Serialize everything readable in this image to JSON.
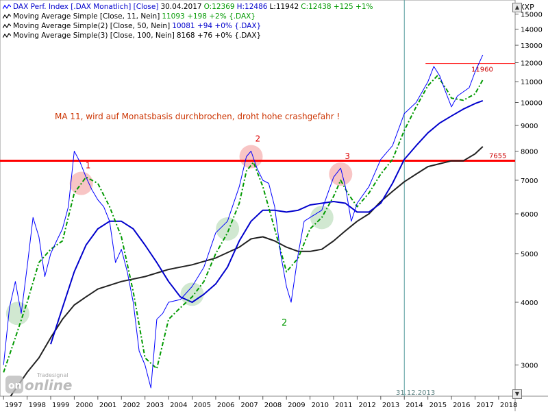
{
  "legend": {
    "row1": {
      "name": "DAX Perf. Index [.DAX  Monatlich] [Close]",
      "date": "30.04.2017",
      "open": "O:12369",
      "high": "H:12486",
      "low": "L:11942",
      "close": "C:12438 +125 +1%"
    },
    "row2": {
      "name": "Moving Average Simple [Close, 11, Nein]",
      "value": "11093 +198 +2% {.DAX}"
    },
    "row3": {
      "name": "Moving Average Simple(2) [Close, 50, Nein]",
      "value": "10081 +94 +0% {.DAX}"
    },
    "row4": {
      "name": "Moving Average Simple(3) [Close, 100, Nein]",
      "value": "8168 +76 +0% {.DAX}"
    }
  },
  "axis": {
    "currency": "XXP",
    "y_ticks": [
      3000,
      4000,
      5000,
      6000,
      7000,
      8000,
      9000,
      10000,
      11000,
      12000,
      13000,
      14000,
      15000
    ],
    "y_tick_labels": [
      "3000",
      "4000",
      "5000",
      "6000",
      "7000",
      "8000",
      "9000",
      "10000",
      "11000",
      "12000",
      "13000",
      "14000",
      "15000"
    ],
    "x_ticks": [
      "1997",
      "1998",
      "1999",
      "2000",
      "2001",
      "2002",
      "2003",
      "2004",
      "2005",
      "2006",
      "2007",
      "2008",
      "2009",
      "2010",
      "2011",
      "2012",
      "2013",
      "2014",
      "2015",
      "2016",
      "2017",
      "2018"
    ]
  },
  "annotations": {
    "comment": "MA 11, wird auf Monatsbasis durchbrochen, droht hohe crashgefahr !",
    "peak1": "1",
    "peak2": "2",
    "peak3": "3",
    "low2": "2",
    "line_7655": "7655",
    "line_11960": "11960",
    "vline_date": "31.12.2013"
  },
  "logo": {
    "brand": "Tradesignal",
    "sub": "online"
  },
  "colors": {
    "price": "#0000ff",
    "ma11": "#009900",
    "ma50": "#0000cc",
    "ma100": "#222222",
    "support": "#ff0000",
    "resistance": "#ff0000",
    "vline": "#5a9ea0",
    "annotation_text": "#cc3300"
  },
  "chart_data": {
    "type": "line",
    "y_scale": "log",
    "ylim": [
      2600,
      16000
    ],
    "xlim": [
      1996.85,
      2018.7
    ],
    "series": [
      {
        "name": "DAX Perf. Index [.DAX  Monatlich] [Close]",
        "x": [
          1997.0,
          1997.25,
          1997.5,
          1997.75,
          1998.0,
          1998.25,
          1998.5,
          1998.75,
          1999.0,
          1999.25,
          1999.5,
          1999.75,
          2000.0,
          2000.25,
          2000.5,
          2000.75,
          2001.0,
          2001.25,
          2001.5,
          2001.75,
          2002.0,
          2002.25,
          2002.5,
          2002.75,
          2003.0,
          2003.25,
          2003.5,
          2003.75,
          2004.0,
          2004.5,
          2005.0,
          2005.5,
          2006.0,
          2006.5,
          2007.0,
          2007.3,
          2007.5,
          2007.75,
          2008.0,
          2008.25,
          2008.5,
          2008.75,
          2009.0,
          2009.2,
          2009.5,
          2009.75,
          2010.0,
          2010.5,
          2011.0,
          2011.3,
          2011.5,
          2011.75,
          2012.0,
          2012.5,
          2013.0,
          2013.5,
          2014.0,
          2014.5,
          2015.0,
          2015.25,
          2015.5,
          2015.75,
          2016.0,
          2016.25,
          2016.5,
          2016.75,
          2017.0,
          2017.33
        ],
        "y": [
          3000,
          3900,
          4400,
          3800,
          4700,
          5900,
          5400,
          4500,
          5000,
          5300,
          5600,
          6200,
          8000,
          7600,
          7100,
          6700,
          6400,
          6200,
          5800,
          4800,
          5100,
          4600,
          4000,
          3200,
          3000,
          2700,
          3700,
          3800,
          4000,
          4050,
          4300,
          4700,
          5500,
          5800,
          6800,
          7800,
          8000,
          7400,
          7000,
          6900,
          6200,
          5000,
          4300,
          4000,
          5000,
          5800,
          5900,
          6100,
          7100,
          7400,
          6800,
          5800,
          6300,
          6800,
          7700,
          8200,
          9500,
          10000,
          11000,
          11800,
          11300,
          10500,
          9800,
          10300,
          10500,
          10700,
          11500,
          12438
        ]
      },
      {
        "name": "Moving Average Simple [Close, 11, Nein]",
        "x": [
          1997.0,
          1997.5,
          1998.0,
          1998.5,
          1999.0,
          1999.5,
          2000.0,
          2000.5,
          2001.0,
          2001.5,
          2002.0,
          2002.5,
          2003.0,
          2003.5,
          2004.0,
          2004.5,
          2005.0,
          2005.5,
          2006.0,
          2006.5,
          2007.0,
          2007.3,
          2007.6,
          2008.0,
          2008.5,
          2009.0,
          2009.5,
          2010.0,
          2010.5,
          2011.0,
          2011.3,
          2011.6,
          2012.0,
          2012.5,
          2013.0,
          2013.5,
          2014.0,
          2014.5,
          2015.0,
          2015.4,
          2015.75,
          2016.0,
          2016.5,
          2017.0,
          2017.33
        ],
        "y": [
          2900,
          3400,
          4000,
          4800,
          5100,
          5300,
          6600,
          7100,
          6900,
          6200,
          5400,
          4200,
          3100,
          2950,
          3700,
          3900,
          4100,
          4400,
          5000,
          5500,
          6300,
          7300,
          7600,
          6800,
          5600,
          4600,
          4900,
          5600,
          5900,
          6500,
          7000,
          6600,
          6200,
          6600,
          7200,
          7700,
          8800,
          9800,
          10800,
          11300,
          10700,
          10200,
          10100,
          10400,
          11093
        ]
      },
      {
        "name": "Moving Average Simple(2) [Close, 50, Nein]",
        "x": [
          1999.0,
          1999.5,
          2000.0,
          2000.5,
          2001.0,
          2001.5,
          2002.0,
          2002.5,
          2003.0,
          2003.5,
          2004.0,
          2004.5,
          2005.0,
          2005.5,
          2006.0,
          2006.5,
          2007.0,
          2007.5,
          2008.0,
          2008.5,
          2009.0,
          2009.5,
          2010.0,
          2010.5,
          2011.0,
          2011.5,
          2012.0,
          2012.5,
          2013.0,
          2013.5,
          2014.0,
          2014.5,
          2015.0,
          2015.5,
          2016.0,
          2016.5,
          2017.0,
          2017.33
        ],
        "y": [
          3300,
          3900,
          4600,
          5200,
          5600,
          5800,
          5800,
          5600,
          5200,
          4800,
          4400,
          4100,
          4000,
          4150,
          4350,
          4700,
          5300,
          5800,
          6100,
          6100,
          6050,
          6100,
          6250,
          6300,
          6350,
          6300,
          6050,
          6050,
          6300,
          6900,
          7700,
          8200,
          8700,
          9100,
          9400,
          9700,
          9950,
          10081
        ]
      },
      {
        "name": "Moving Average Simple(3) [Close, 100, Nein]",
        "x": [
          1997.3,
          1998.0,
          1998.5,
          1999.0,
          1999.5,
          2000.0,
          2000.5,
          2001.0,
          2002.0,
          2003.0,
          2004.0,
          2005.0,
          2006.0,
          2007.0,
          2007.5,
          2008.0,
          2008.5,
          2009.0,
          2009.5,
          2010.0,
          2010.5,
          2011.0,
          2011.5,
          2012.0,
          2012.5,
          2013.0,
          2013.5,
          2014.0,
          2014.5,
          2015.0,
          2015.5,
          2016.0,
          2016.5,
          2017.0,
          2017.33
        ],
        "y": [
          2600,
          2900,
          3100,
          3400,
          3700,
          3950,
          4100,
          4250,
          4400,
          4500,
          4650,
          4750,
          4900,
          5150,
          5350,
          5400,
          5300,
          5150,
          5050,
          5050,
          5100,
          5300,
          5550,
          5800,
          6000,
          6350,
          6650,
          6950,
          7200,
          7450,
          7550,
          7650,
          7650,
          7900,
          8168
        ]
      }
    ],
    "hlines": [
      {
        "label": "7655",
        "value": 7655
      },
      {
        "label": "11960",
        "value": 11960
      }
    ],
    "vline": {
      "label": "31.12.2013",
      "x": 2014.0
    },
    "markers": [
      {
        "label": "1",
        "x": 2000.3,
        "y": 6900,
        "kind": "red"
      },
      {
        "label": "2",
        "x": 2007.5,
        "y": 7800,
        "kind": "red"
      },
      {
        "label": "3",
        "x": 2011.3,
        "y": 7200,
        "kind": "red"
      },
      {
        "label": "",
        "x": 1997.6,
        "y": 3800,
        "kind": "green"
      },
      {
        "label": "",
        "x": 2005.0,
        "y": 4150,
        "kind": "green"
      },
      {
        "label": "",
        "x": 2006.5,
        "y": 5600,
        "kind": "green"
      },
      {
        "label": "",
        "x": 2010.5,
        "y": 5900,
        "kind": "green"
      }
    ],
    "grid": false,
    "legend_position": "top-left"
  }
}
